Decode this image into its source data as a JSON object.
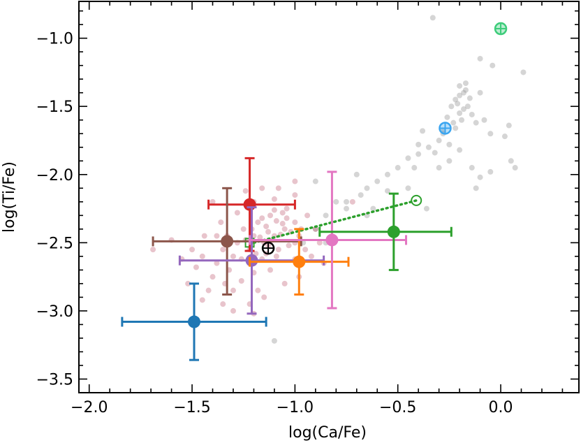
{
  "chart_data": {
    "type": "scatter",
    "title": "",
    "xlabel": "log(Ca/Fe)",
    "ylabel": "log(Ti/Fe)",
    "xlim": [
      -2.05,
      0.38
    ],
    "ylim": [
      -3.6,
      -0.73
    ],
    "x_ticks": [
      {
        "value": -2.0,
        "label": "−2.0"
      },
      {
        "value": -1.5,
        "label": "−1.5"
      },
      {
        "value": -1.0,
        "label": "−1.0"
      },
      {
        "value": -0.5,
        "label": "−0.5"
      },
      {
        "value": 0.0,
        "label": "0.0"
      }
    ],
    "y_ticks": [
      {
        "value": -1.0,
        "label": "−1.0"
      },
      {
        "value": -1.5,
        "label": "−1.5"
      },
      {
        "value": -2.0,
        "label": "−2.0"
      },
      {
        "value": -2.5,
        "label": "−2.5"
      },
      {
        "value": -3.0,
        "label": "−3.0"
      },
      {
        "value": -3.5,
        "label": "−3.5"
      }
    ],
    "background_series": [
      {
        "name": "grey cloud",
        "color": "#9a9a9a",
        "points": [
          [
            -0.2,
            -1.35
          ],
          [
            -0.18,
            -1.4
          ],
          [
            -0.22,
            -1.45
          ],
          [
            -0.16,
            -1.5
          ],
          [
            -0.2,
            -1.55
          ],
          [
            -0.24,
            -1.5
          ],
          [
            -0.17,
            -1.38
          ],
          [
            -0.19,
            -1.6
          ],
          [
            -0.23,
            -1.62
          ],
          [
            -0.15,
            -1.44
          ],
          [
            -0.21,
            -1.48
          ],
          [
            -0.18,
            -1.52
          ],
          [
            -0.14,
            -1.56
          ],
          [
            -0.26,
            -1.58
          ],
          [
            -0.2,
            -1.42
          ],
          [
            -0.17,
            -1.33
          ],
          [
            -0.22,
            -1.66
          ],
          [
            -0.28,
            -1.7
          ],
          [
            -0.12,
            -1.62
          ],
          [
            -0.3,
            -1.75
          ],
          [
            -0.35,
            -1.8
          ],
          [
            -0.25,
            -1.78
          ],
          [
            -0.1,
            -1.4
          ],
          [
            -0.33,
            -0.85
          ],
          [
            -0.1,
            -1.15
          ],
          [
            -0.04,
            -1.2
          ],
          [
            0.11,
            -1.25
          ],
          [
            -0.08,
            -1.6
          ],
          [
            -0.05,
            -1.7
          ],
          [
            0.02,
            -1.72
          ],
          [
            -0.4,
            -1.85
          ],
          [
            -0.42,
            -1.95
          ],
          [
            -0.45,
            -1.88
          ],
          [
            -0.5,
            -1.95
          ],
          [
            -0.55,
            -2.0
          ],
          [
            -0.6,
            -2.05
          ],
          [
            -0.65,
            -2.1
          ],
          [
            -0.7,
            -2.0
          ],
          [
            -0.68,
            -2.15
          ],
          [
            -0.55,
            -2.12
          ],
          [
            -0.36,
            -2.25
          ],
          [
            -0.3,
            -1.95
          ],
          [
            -0.28,
            -1.68
          ],
          [
            -0.38,
            -1.68
          ],
          [
            -0.4,
            -1.78
          ],
          [
            -0.45,
            -2.1
          ],
          [
            -0.62,
            -2.25
          ],
          [
            -0.85,
            -2.3
          ],
          [
            -0.9,
            -2.05
          ],
          [
            -0.75,
            -2.2
          ],
          [
            -0.12,
            -2.1
          ],
          [
            -0.1,
            -2.02
          ],
          [
            -0.14,
            -1.95
          ],
          [
            -0.05,
            -1.98
          ],
          [
            0.05,
            -1.9
          ],
          [
            0.07,
            -1.95
          ],
          [
            0.04,
            -1.64
          ],
          [
            -0.2,
            -1.82
          ],
          [
            -0.25,
            -1.9
          ],
          [
            -0.32,
            -1.84
          ],
          [
            -1.1,
            -3.22
          ],
          [
            -0.96,
            -2.5
          ],
          [
            -0.9,
            -2.4
          ],
          [
            -0.85,
            -2.5
          ],
          [
            -0.75,
            -2.25
          ],
          [
            -0.65,
            -2.3
          ],
          [
            -0.8,
            -2.2
          ]
        ]
      },
      {
        "name": "red cloud",
        "color": "#b8475f",
        "points": [
          [
            -1.1,
            -2.45
          ],
          [
            -1.05,
            -2.4
          ],
          [
            -1.15,
            -2.5
          ],
          [
            -1.0,
            -2.35
          ],
          [
            -1.12,
            -2.3
          ],
          [
            -1.08,
            -2.55
          ],
          [
            -1.2,
            -2.45
          ],
          [
            -0.98,
            -2.45
          ],
          [
            -1.14,
            -2.38
          ],
          [
            -1.03,
            -2.52
          ],
          [
            -1.18,
            -2.35
          ],
          [
            -1.06,
            -2.28
          ],
          [
            -1.22,
            -2.55
          ],
          [
            -1.09,
            -2.6
          ],
          [
            -0.95,
            -2.55
          ],
          [
            -1.25,
            -2.4
          ],
          [
            -1.0,
            -2.62
          ],
          [
            -1.16,
            -2.62
          ],
          [
            -1.28,
            -2.5
          ],
          [
            -1.3,
            -2.6
          ],
          [
            -1.35,
            -2.55
          ],
          [
            -1.32,
            -2.7
          ],
          [
            -1.38,
            -2.65
          ],
          [
            -1.4,
            -2.75
          ],
          [
            -1.26,
            -2.78
          ],
          [
            -1.2,
            -2.72
          ],
          [
            -1.12,
            -2.7
          ],
          [
            -1.04,
            -2.25
          ],
          [
            -1.1,
            -2.18
          ],
          [
            -1.0,
            -2.15
          ],
          [
            -0.94,
            -2.3
          ],
          [
            -0.9,
            -2.4
          ],
          [
            -1.2,
            -2.2
          ],
          [
            -1.28,
            -2.28
          ],
          [
            -1.36,
            -2.35
          ],
          [
            -1.44,
            -2.45
          ],
          [
            -1.45,
            -2.6
          ],
          [
            -1.42,
            -2.85
          ],
          [
            -1.3,
            -2.85
          ],
          [
            -1.18,
            -2.85
          ],
          [
            -1.22,
            -2.95
          ],
          [
            -1.35,
            -2.95
          ],
          [
            -1.48,
            -2.68
          ],
          [
            -1.5,
            -2.55
          ],
          [
            -1.55,
            -2.62
          ],
          [
            -1.6,
            -2.48
          ],
          [
            -1.52,
            -2.8
          ],
          [
            -1.45,
            -2.92
          ],
          [
            -1.3,
            -3.0
          ],
          [
            -1.2,
            -3.02
          ],
          [
            -1.15,
            -2.9
          ],
          [
            -1.05,
            -2.8
          ],
          [
            -0.98,
            -2.75
          ],
          [
            -0.92,
            -2.6
          ],
          [
            -0.88,
            -2.5
          ],
          [
            -1.0,
            -2.05
          ],
          [
            -1.08,
            -2.1
          ],
          [
            -1.16,
            -2.1
          ],
          [
            -1.24,
            -2.12
          ],
          [
            -1.13,
            -2.42
          ],
          [
            -1.11,
            -2.48
          ],
          [
            -1.07,
            -2.44
          ],
          [
            -1.13,
            -2.52
          ],
          [
            -1.17,
            -2.46
          ],
          [
            -1.02,
            -2.42
          ],
          [
            -1.06,
            -2.36
          ],
          [
            -1.19,
            -2.58
          ],
          [
            -1.24,
            -2.48
          ],
          [
            -1.16,
            -2.32
          ],
          [
            -1.1,
            -2.26
          ],
          [
            -1.04,
            -2.32
          ],
          [
            -1.0,
            -2.5
          ],
          [
            -1.14,
            -2.58
          ],
          [
            -1.26,
            -2.62
          ],
          [
            -1.33,
            -2.45
          ],
          [
            -1.34,
            -2.8
          ],
          [
            -1.38,
            -2.45
          ],
          [
            -0.97,
            -2.4
          ],
          [
            -1.09,
            -2.34
          ],
          [
            -1.21,
            -2.4
          ],
          [
            -1.69,
            -2.55
          ],
          [
            -0.72,
            -2.2
          ],
          [
            -1.4,
            -2.2
          ],
          [
            -0.86,
            -2.65
          ]
        ]
      }
    ],
    "series": [
      {
        "name": "red",
        "color": "#d62728",
        "x": -1.22,
        "y": -2.22,
        "xerr": [
          0.2,
          0.22
        ],
        "yerr": [
          0.34,
          0.34
        ]
      },
      {
        "name": "brown",
        "color": "#8c564b",
        "x": -1.33,
        "y": -2.49,
        "xerr": [
          0.36,
          0.36
        ],
        "yerr": [
          0.39,
          0.39
        ]
      },
      {
        "name": "purple",
        "color": "#9467bd",
        "x": -1.21,
        "y": -2.63,
        "xerr": [
          0.35,
          0.35
        ],
        "yerr": [
          0.39,
          0.39
        ]
      },
      {
        "name": "orange",
        "color": "#ff7f0e",
        "x": -0.98,
        "y": -2.64,
        "xerr": [
          0.24,
          0.24
        ],
        "yerr": [
          0.24,
          0.24
        ]
      },
      {
        "name": "pink",
        "color": "#e377c2",
        "x": -0.82,
        "y": -2.48,
        "xerr": [
          0.4,
          0.36
        ],
        "yerr": [
          0.5,
          0.5
        ]
      },
      {
        "name": "green",
        "color": "#2ca02c",
        "x": -0.52,
        "y": -2.42,
        "xerr": [
          0.36,
          0.28
        ],
        "yerr": [
          0.28,
          0.28
        ]
      },
      {
        "name": "blue",
        "color": "#1f77b4",
        "x": -1.49,
        "y": -3.08,
        "xerr": [
          0.35,
          0.35
        ],
        "yerr": [
          0.28,
          0.28
        ]
      }
    ],
    "dotted_line": {
      "color": "#2ca02c",
      "from": [
        -1.2,
        -2.5
      ],
      "to": [
        -0.41,
        -2.19
      ],
      "square_marker": [
        -1.22,
        -2.5
      ],
      "open_circle": [
        -0.41,
        -2.19
      ]
    },
    "solar_symbols": [
      {
        "name": "black",
        "color": "#000000",
        "x": -1.13,
        "y": -2.54
      },
      {
        "name": "blue",
        "color": "#3aa5f0",
        "x": -0.27,
        "y": -1.66
      },
      {
        "name": "green",
        "color": "#3dcc7a",
        "x": 0.0,
        "y": -0.93
      }
    ]
  }
}
